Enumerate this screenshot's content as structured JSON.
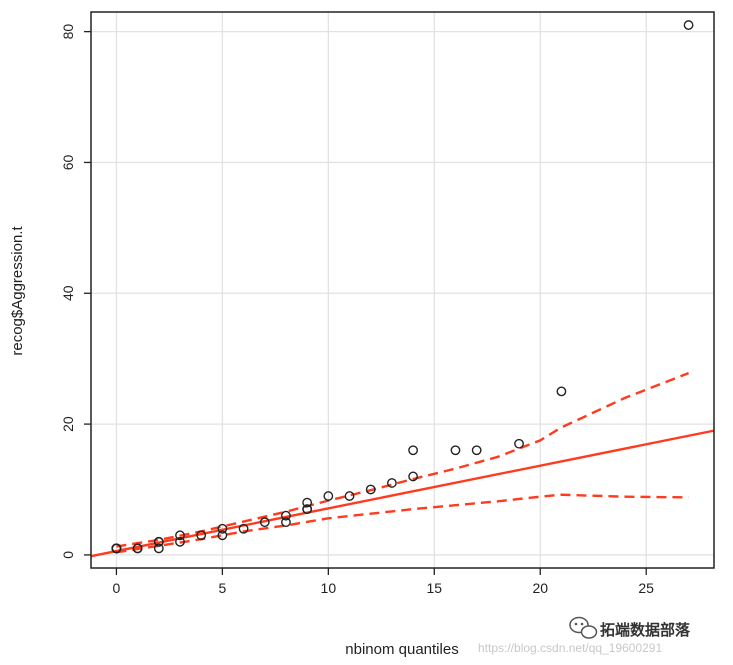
{
  "chart_data": {
    "type": "scatter",
    "xlabel": "nbinom quantiles",
    "ylabel": "recog$Aggression.t",
    "xlim": [
      -1.2,
      28.2
    ],
    "ylim": [
      -2,
      83
    ],
    "xticks": [
      0,
      5,
      10,
      15,
      20,
      25
    ],
    "yticks": [
      0,
      20,
      40,
      60,
      80
    ],
    "grid": true,
    "colors": {
      "points": "#222222",
      "line": "#ff3b1f",
      "grid": "#e2e2e2"
    },
    "points": [
      [
        0,
        1
      ],
      [
        0,
        1
      ],
      [
        0,
        1
      ],
      [
        0,
        1
      ],
      [
        0,
        1
      ],
      [
        0,
        1
      ],
      [
        1,
        1
      ],
      [
        1,
        1
      ],
      [
        2,
        1
      ],
      [
        2,
        2
      ],
      [
        2,
        2
      ],
      [
        3,
        2
      ],
      [
        3,
        3
      ],
      [
        4,
        3
      ],
      [
        5,
        3
      ],
      [
        5,
        4
      ],
      [
        6,
        4
      ],
      [
        7,
        5
      ],
      [
        8,
        5
      ],
      [
        8,
        6
      ],
      [
        9,
        7
      ],
      [
        9,
        7
      ],
      [
        9,
        8
      ],
      [
        10,
        9
      ],
      [
        11,
        9
      ],
      [
        12,
        10
      ],
      [
        13,
        11
      ],
      [
        14,
        12
      ],
      [
        14,
        16
      ],
      [
        16,
        16
      ],
      [
        17,
        16
      ],
      [
        19,
        17
      ],
      [
        21,
        25
      ],
      [
        27,
        81
      ]
    ],
    "fit_line": {
      "x": [
        -1.2,
        28.2
      ],
      "y": [
        -0.2,
        19.0
      ]
    },
    "upper_band": {
      "x": [
        0,
        2,
        4,
        6,
        8,
        10,
        12,
        14,
        16,
        18,
        20,
        21,
        22,
        24,
        27
      ],
      "y": [
        1.3,
        2.3,
        3.6,
        5.1,
        6.6,
        8.3,
        9.9,
        11.6,
        13.2,
        15.0,
        17.5,
        19.5,
        21.0,
        24.0,
        27.8
      ]
    },
    "lower_band": {
      "x": [
        0,
        2,
        4,
        6,
        8,
        10,
        12,
        14,
        16,
        18,
        20,
        21,
        22,
        24,
        27
      ],
      "y": [
        0.4,
        1.4,
        2.4,
        3.6,
        4.5,
        5.6,
        6.3,
        7.0,
        7.6,
        8.2,
        8.9,
        9.2,
        9.1,
        8.9,
        8.8
      ]
    }
  },
  "watermark": {
    "icon": "wechat-icon",
    "text": "拓端数据部落",
    "url": "https://blog.csdn.net/qq_19600291"
  }
}
